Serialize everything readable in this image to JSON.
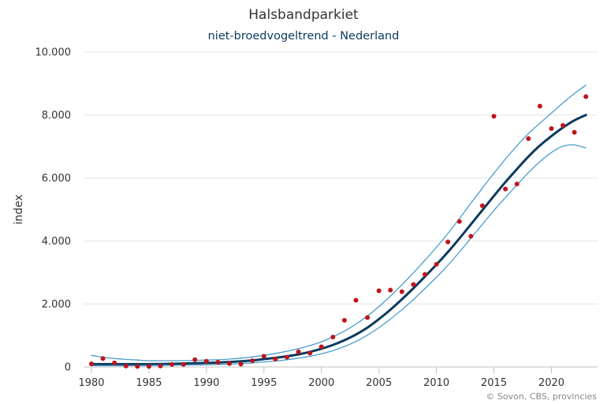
{
  "chart_data": {
    "type": "line",
    "title": "Halsbandparkiet",
    "subtitle": "niet-broedvogeltrend - Nederland",
    "xlabel": "",
    "ylabel": "index",
    "xlim": [
      1980,
      2023.6
    ],
    "ylim": [
      0,
      10000
    ],
    "x_ticks": [
      1980,
      1985,
      1990,
      1995,
      2000,
      2005,
      2010,
      2015,
      2020
    ],
    "y_ticks": [
      0,
      2000,
      4000,
      6000,
      8000,
      10000
    ],
    "y_tick_labels": [
      "0",
      "2.000",
      "4.000",
      "6.000",
      "8.000",
      "10.000"
    ],
    "grid": "horizontal",
    "legend": "none",
    "colors": {
      "trend": "#0c3a5e",
      "ci": "#4a9ccc",
      "points": "#c0141c"
    },
    "series": [
      {
        "role": "trend",
        "x": [
          1980,
          1981,
          1982,
          1983,
          1984,
          1985,
          1986,
          1987,
          1988,
          1989,
          1990,
          1991,
          1992,
          1993,
          1994,
          1995,
          1996,
          1997,
          1998,
          1999,
          2000,
          2001,
          2002,
          2003,
          2004,
          2005,
          2006,
          2007,
          2008,
          2009,
          2010,
          2011,
          2012,
          2013,
          2014,
          2015,
          2016,
          2017,
          2018,
          2019,
          2020,
          2021,
          2022,
          2023
        ],
        "values": [
          90,
          90,
          90,
          90,
          90,
          90,
          95,
          100,
          110,
          120,
          130,
          140,
          160,
          180,
          210,
          250,
          290,
          340,
          400,
          480,
          580,
          700,
          850,
          1030,
          1250,
          1520,
          1820,
          2150,
          2500,
          2870,
          3250,
          3650,
          4080,
          4530,
          4980,
          5430,
          5870,
          6280,
          6680,
          7030,
          7330,
          7600,
          7830,
          8000
        ]
      },
      {
        "role": "ci-upper",
        "x": [
          1980,
          1981,
          1982,
          1983,
          1984,
          1985,
          1986,
          1987,
          1988,
          1989,
          1990,
          1991,
          1992,
          1993,
          1994,
          1995,
          1996,
          1997,
          1998,
          1999,
          2000,
          2001,
          2002,
          2003,
          2004,
          2005,
          2006,
          2007,
          2008,
          2009,
          2010,
          2011,
          2012,
          2013,
          2014,
          2015,
          2016,
          2017,
          2018,
          2019,
          2020,
          2021,
          2022,
          2023
        ],
        "values": [
          370,
          310,
          270,
          240,
          220,
          200,
          200,
          200,
          200,
          210,
          220,
          230,
          250,
          280,
          320,
          370,
          430,
          500,
          580,
          680,
          800,
          960,
          1140,
          1360,
          1620,
          1920,
          2250,
          2610,
          2990,
          3390,
          3800,
          4240,
          4710,
          5200,
          5680,
          6150,
          6600,
          7020,
          7410,
          7740,
          8060,
          8380,
          8680,
          8950
        ]
      },
      {
        "role": "ci-lower",
        "x": [
          1980,
          1981,
          1982,
          1983,
          1984,
          1985,
          1986,
          1987,
          1988,
          1989,
          1990,
          1991,
          1992,
          1993,
          1994,
          1995,
          1996,
          1997,
          1998,
          1999,
          2000,
          2001,
          2002,
          2003,
          2004,
          2005,
          2006,
          2007,
          2008,
          2009,
          2010,
          2011,
          2012,
          2013,
          2014,
          2015,
          2016,
          2017,
          2018,
          2019,
          2020,
          2021,
          2022,
          2023
        ],
        "values": [
          40,
          40,
          40,
          40,
          40,
          45,
          50,
          55,
          60,
          65,
          70,
          80,
          90,
          110,
          130,
          160,
          190,
          230,
          280,
          340,
          420,
          520,
          650,
          810,
          1010,
          1250,
          1520,
          1820,
          2140,
          2490,
          2850,
          3230,
          3650,
          4090,
          4530,
          4970,
          5380,
          5780,
          6170,
          6520,
          6810,
          7010,
          7050,
          6950
        ]
      },
      {
        "role": "observed",
        "x": [
          1980,
          1981,
          1982,
          1983,
          1984,
          1985,
          1986,
          1987,
          1988,
          1989,
          1990,
          1991,
          1992,
          1993,
          1994,
          1995,
          1996,
          1997,
          1998,
          1999,
          2000,
          2001,
          2002,
          2003,
          2004,
          2005,
          2006,
          2007,
          2008,
          2009,
          2010,
          2011,
          2012,
          2013,
          2014,
          2015,
          2016,
          2017,
          2018,
          2019,
          2020,
          2021,
          2022,
          2023
        ],
        "values": [
          100,
          270,
          130,
          30,
          20,
          20,
          30,
          80,
          80,
          230,
          180,
          150,
          110,
          90,
          200,
          340,
          250,
          310,
          480,
          440,
          640,
          950,
          1480,
          2120,
          1570,
          2420,
          2440,
          2390,
          2620,
          2940,
          3260,
          3970,
          4620,
          4150,
          5120,
          7960,
          5650,
          5810,
          7250,
          8280,
          7570,
          7670,
          7450,
          8580
        ]
      }
    ],
    "credit": "© Sovon, CBS, provincies"
  }
}
